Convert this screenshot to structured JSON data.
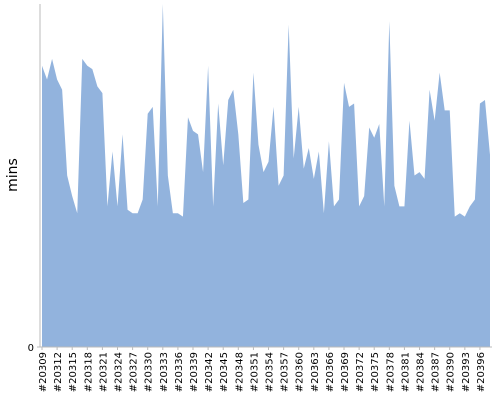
{
  "chart_data": {
    "type": "area",
    "y_label": "mins",
    "color": "#92b3dd",
    "categories": [
      "#20309",
      null,
      null,
      "#20312",
      null,
      null,
      "#20315",
      null,
      null,
      "#20318",
      null,
      null,
      "#20321",
      null,
      null,
      "#20324",
      null,
      null,
      "#20327",
      null,
      null,
      "#20330",
      null,
      null,
      "#20333",
      null,
      null,
      "#20336",
      null,
      null,
      "#20339",
      null,
      null,
      "#20342",
      null,
      null,
      "#20345",
      null,
      null,
      "#20348",
      null,
      null,
      "#20351",
      null,
      null,
      "#20354",
      null,
      null,
      "#20357",
      null,
      null,
      "#20360",
      null,
      null,
      "#20363",
      null,
      null,
      "#20366",
      null,
      null,
      "#20369",
      null,
      null,
      "#20372",
      null,
      null,
      "#20375",
      null,
      null,
      "#20378",
      null,
      null,
      "#20381",
      null,
      null,
      "#20384",
      null,
      null,
      "#20387",
      null,
      null,
      "#20390",
      null,
      null,
      "#20393",
      null,
      null,
      "#20396",
      null,
      null
    ],
    "values": [
      82,
      78,
      84,
      78,
      75,
      50,
      44,
      39,
      84,
      82,
      81,
      76,
      74,
      41,
      57,
      41,
      62,
      40,
      39,
      39,
      43,
      68,
      70,
      41,
      100,
      50,
      39,
      39,
      38,
      67,
      63,
      62,
      51,
      82,
      41,
      71,
      53,
      72,
      75,
      62,
      42,
      43,
      80,
      59,
      51,
      54,
      70,
      47,
      50,
      94,
      55,
      70,
      52,
      58,
      49,
      57,
      39,
      60,
      41,
      43,
      77,
      70,
      71,
      41,
      44,
      64,
      61,
      65,
      41,
      95,
      47,
      41,
      41,
      66,
      50,
      51,
      49,
      75,
      66,
      80,
      69,
      69,
      38,
      39,
      38,
      41,
      43,
      71,
      72,
      56
    ],
    "ylim": [
      0,
      100
    ],
    "yticks": [
      0
    ]
  }
}
